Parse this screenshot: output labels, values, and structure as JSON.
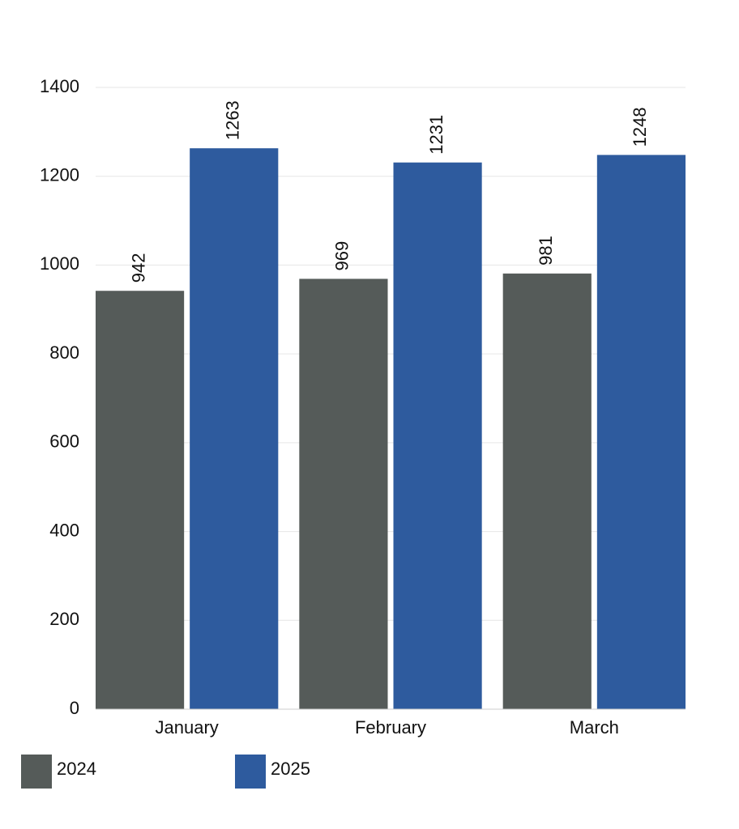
{
  "chart_data": {
    "type": "bar",
    "categories": [
      "January",
      "February",
      "March"
    ],
    "series": [
      {
        "name": "2024",
        "color": "#555b59",
        "values": [
          942,
          969,
          981
        ]
      },
      {
        "name": "2025",
        "color": "#2e5b9e",
        "values": [
          1263,
          1231,
          1248
        ]
      }
    ],
    "ylim": [
      0,
      1400
    ],
    "yticks": [
      0,
      200,
      400,
      600,
      800,
      1000,
      1200,
      1400
    ],
    "grid": true,
    "legend": "bottom-left"
  }
}
